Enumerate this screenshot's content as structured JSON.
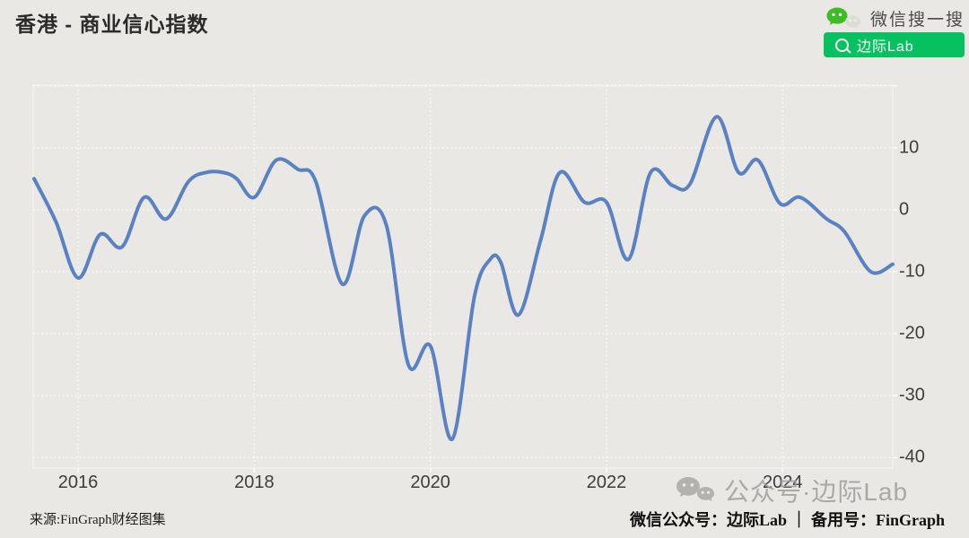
{
  "header": {
    "title": "香港 - 商业信心指数"
  },
  "wechat_search": {
    "brand_label": "微信搜一搜",
    "button_label": "边际Lab",
    "button_color": "#07c160"
  },
  "chart_data": {
    "type": "line",
    "title": "香港 - 商业信心指数",
    "xlabel": "",
    "ylabel": "",
    "x_ticks": [
      2016,
      2018,
      2020,
      2022,
      2024
    ],
    "y_ticks": [
      10,
      0,
      -10,
      -20,
      -30,
      -40
    ],
    "y_gridlines": [
      20,
      10,
      0,
      -10,
      -20,
      -30,
      -40
    ],
    "xlim": [
      2015.49,
      2025.25
    ],
    "ylim": [
      -41.7,
      20.1
    ],
    "grid": true,
    "y_axis_side": "right",
    "series": [
      {
        "name": "商业信心指数",
        "color": "#5a82c3",
        "points": [
          [
            2015.5,
            5
          ],
          [
            2015.75,
            -2
          ],
          [
            2016.0,
            -11
          ],
          [
            2016.25,
            -4
          ],
          [
            2016.5,
            -6
          ],
          [
            2016.75,
            2
          ],
          [
            2017.0,
            -1.5
          ],
          [
            2017.25,
            4.5
          ],
          [
            2017.45,
            6
          ],
          [
            2017.65,
            6
          ],
          [
            2017.8,
            5
          ],
          [
            2018.0,
            2
          ],
          [
            2018.25,
            8
          ],
          [
            2018.5,
            6.5
          ],
          [
            2018.7,
            4.5
          ],
          [
            2019.0,
            -12
          ],
          [
            2019.25,
            -1
          ],
          [
            2019.5,
            -2.5
          ],
          [
            2019.75,
            -25
          ],
          [
            2020.0,
            -22
          ],
          [
            2020.25,
            -37
          ],
          [
            2020.5,
            -14
          ],
          [
            2020.68,
            -8
          ],
          [
            2020.8,
            -8.5
          ],
          [
            2021.0,
            -17
          ],
          [
            2021.25,
            -5
          ],
          [
            2021.47,
            6
          ],
          [
            2021.75,
            1.2
          ],
          [
            2022.0,
            1.2
          ],
          [
            2022.25,
            -8
          ],
          [
            2022.5,
            6
          ],
          [
            2022.75,
            3.9
          ],
          [
            2022.95,
            4.2
          ],
          [
            2023.25,
            15
          ],
          [
            2023.5,
            6
          ],
          [
            2023.72,
            8
          ],
          [
            2023.97,
            1
          ],
          [
            2024.2,
            2
          ],
          [
            2024.5,
            -1.5
          ],
          [
            2024.7,
            -3.5
          ],
          [
            2025.0,
            -10
          ],
          [
            2025.25,
            -8.8
          ]
        ]
      }
    ]
  },
  "watermark": {
    "text": "公众号·边际Lab"
  },
  "footer": {
    "source": "来源:FinGraph财经图集",
    "accounts": "微信公众号：边际Lab ｜ 备用号：FinGraph"
  }
}
